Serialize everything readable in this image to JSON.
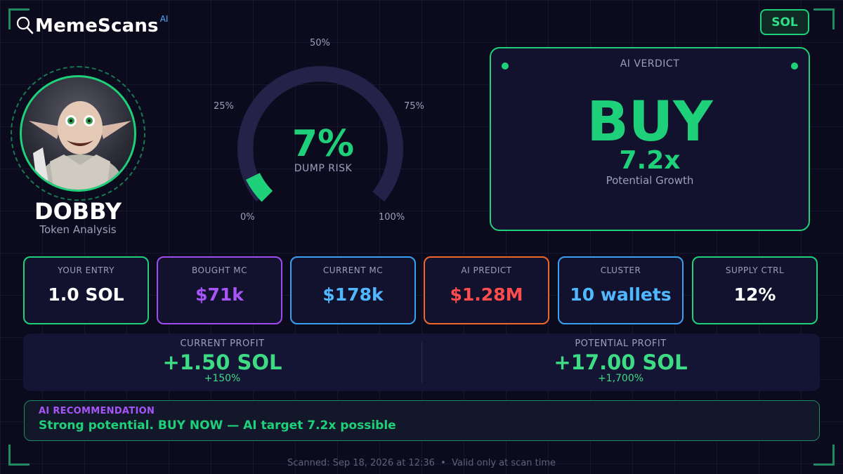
{
  "app": {
    "brand": "MemeScans",
    "brand_suffix": "AI",
    "chain_badge": "SOL"
  },
  "token": {
    "name": "DOBBY",
    "subtitle": "Token Analysis"
  },
  "gauge": {
    "value_text": "7%",
    "value": 7,
    "caption": "DUMP RISK",
    "labels": {
      "p0": "0%",
      "p25": "25%",
      "p50": "50%",
      "p75": "75%",
      "p100": "100%"
    }
  },
  "verdict": {
    "title": "AI VERDICT",
    "action": "BUY",
    "multiplier": "7.2x",
    "subtitle": "Potential Growth"
  },
  "stats": [
    {
      "label": "YOUR ENTRY",
      "value": "1.0 SOL",
      "color": "#ffffff",
      "border": "#1fd07a"
    },
    {
      "label": "BOUGHT MC",
      "value": "$71k",
      "color": "#a855f7",
      "border": "#9d4cf0"
    },
    {
      "label": "CURRENT MC",
      "value": "$178k",
      "color": "#4fb8ff",
      "border": "#3aa0f0"
    },
    {
      "label": "AI PREDICT",
      "value": "$1.28M",
      "color": "#ff4d4d",
      "border": "#f0672a"
    },
    {
      "label": "CLUSTER",
      "value": "10 wallets",
      "color": "#4fb8ff",
      "border": "#3aa0f0"
    },
    {
      "label": "SUPPLY CTRL",
      "value": "12%",
      "color": "#ffffff",
      "border": "#1fd07a"
    }
  ],
  "profit": {
    "current": {
      "label": "CURRENT PROFIT",
      "value": "+1.50 SOL",
      "pct": "+150%"
    },
    "potential": {
      "label": "POTENTIAL PROFIT",
      "value": "+17.00 SOL",
      "pct": "+1,700%"
    }
  },
  "recommendation": {
    "label": "AI RECOMMENDATION",
    "text": "Strong potential. BUY NOW — AI target 7.2x possible"
  },
  "footer": {
    "text": "Scanned: Sep 18, 2026 at 12:36  •  Valid only at scan time"
  }
}
